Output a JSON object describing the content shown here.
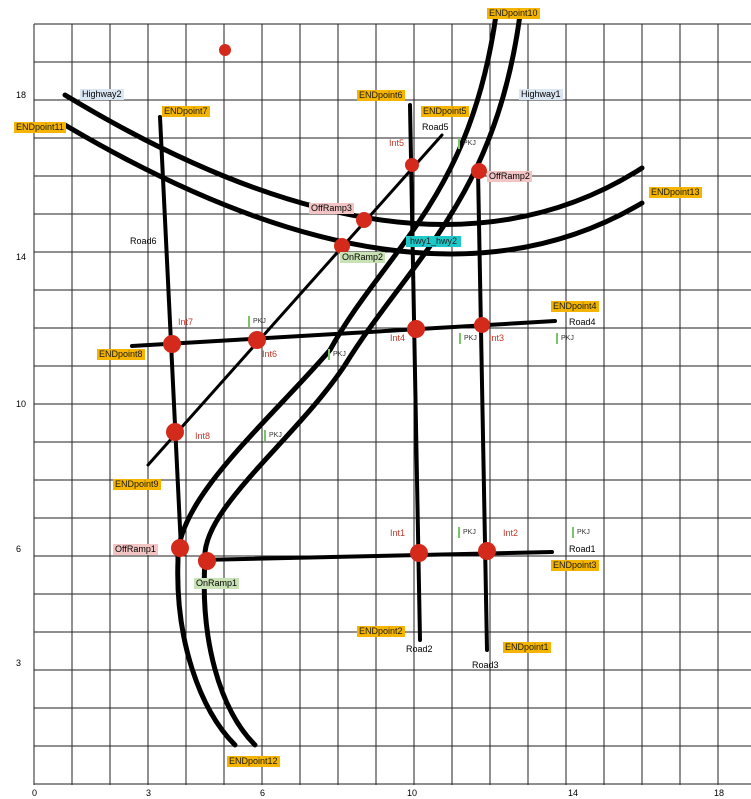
{
  "axes": {
    "x_ticks": [
      "0",
      "3",
      "6",
      "10",
      "14",
      "18"
    ],
    "y_ticks": [
      "18",
      "14",
      "10",
      "6",
      "3"
    ]
  },
  "highways": {
    "highway1": "Highway1",
    "highway2": "Highway2",
    "connector": "hwy1_hwy2"
  },
  "roads": {
    "road1": "Road1",
    "road2": "Road2",
    "road3": "Road3",
    "road4": "Road4",
    "road5": "Road5",
    "road6": "Road6"
  },
  "endpoints": {
    "ep1": "ENDpoint1",
    "ep2": "ENDpoint2",
    "ep3": "ENDpoint3",
    "ep4": "ENDpoint4",
    "ep5": "ENDpoint5",
    "ep6": "ENDpoint6",
    "ep7": "ENDpoint7",
    "ep8": "ENDpoint8",
    "ep9": "ENDpoint9",
    "ep10": "ENDpoint10",
    "ep11": "ENDpoint11",
    "ep12": "ENDpoint12",
    "ep13": "ENDpoint13"
  },
  "intersections": {
    "int1": "Int1",
    "int2": "Int2",
    "int3": "Int3",
    "int4": "Int4",
    "int5": "Int5",
    "int6": "Int6",
    "int7": "Int7",
    "int8": "Int8"
  },
  "ramps": {
    "onramp1": "OnRamp1",
    "onramp2": "OnRamp2",
    "offramp1": "OffRamp1",
    "offramp2": "OffRamp2",
    "offramp3": "OffRamp3"
  },
  "marker_label": "PKJ",
  "colors": {
    "node": "#d42a1c",
    "road": "#000000",
    "grid": "#222222",
    "endpoint_bg": "#f4b400"
  }
}
